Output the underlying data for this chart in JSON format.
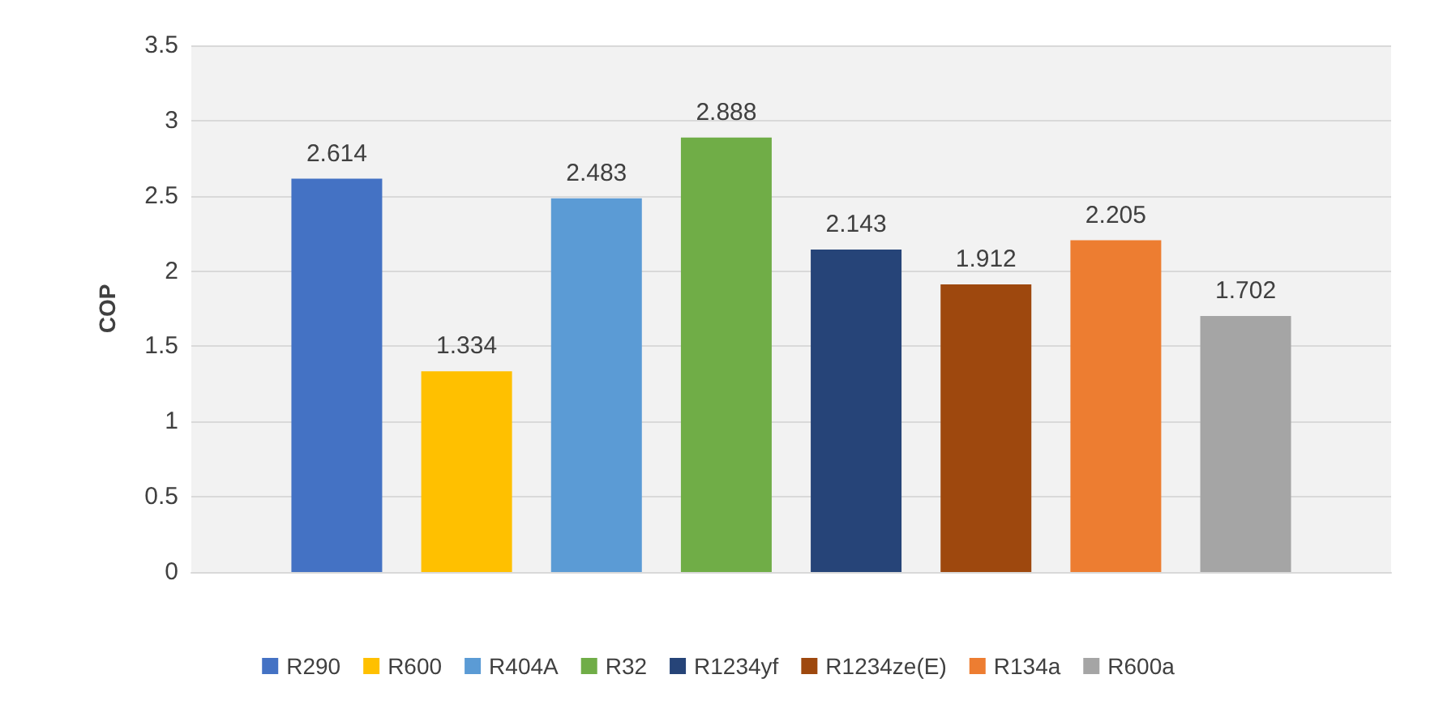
{
  "chart_data": {
    "type": "bar",
    "ylabel": "COP",
    "categories": [
      null
    ],
    "series": [
      {
        "name": "R290",
        "color": "#4472c4",
        "values": [
          2.614
        ]
      },
      {
        "name": "R600",
        "color": "#ffc000",
        "values": [
          1.334
        ]
      },
      {
        "name": "R404A",
        "color": "#5b9bd5",
        "values": [
          2.483
        ]
      },
      {
        "name": "R32",
        "color": "#70ad47",
        "values": [
          2.888
        ]
      },
      {
        "name": "R1234yf",
        "color": "#264478",
        "values": [
          2.143
        ]
      },
      {
        "name": "R1234ze(E)",
        "color": "#9e480e",
        "values": [
          1.912
        ]
      },
      {
        "name": "R134a",
        "color": "#ed7d31",
        "values": [
          2.205
        ]
      },
      {
        "name": "R600a",
        "color": "#a5a5a5",
        "values": [
          1.702
        ]
      }
    ],
    "ylim": [
      0,
      3.5
    ],
    "yticks": [
      0,
      0.5,
      1,
      1.5,
      2,
      2.5,
      3,
      3.5
    ],
    "grid": "y",
    "legend": "bottom",
    "data_labels": true
  }
}
